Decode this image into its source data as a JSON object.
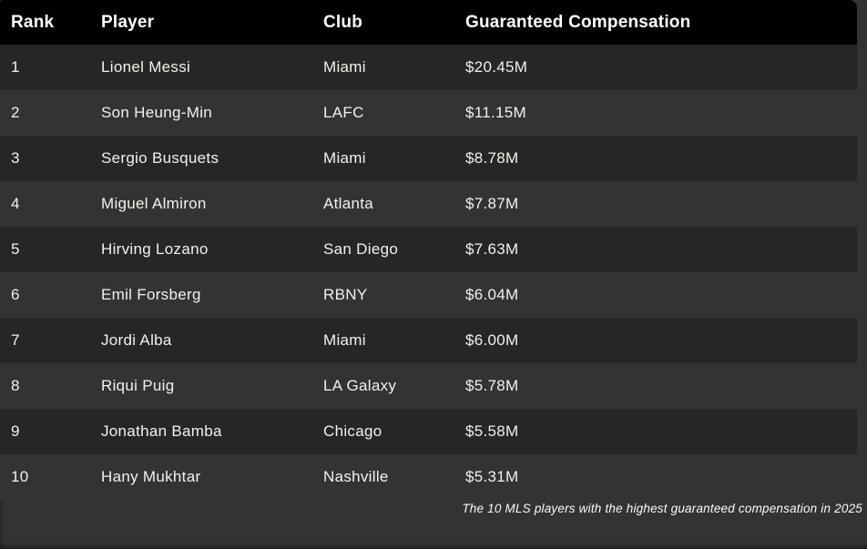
{
  "chart_data": {
    "type": "table",
    "title": "",
    "columns": [
      "Rank",
      "Player",
      "Club",
      "Guaranteed Compensation"
    ],
    "rows": [
      [
        "1",
        "Lionel Messi",
        "Miami",
        "$20.45M"
      ],
      [
        "2",
        "Son Heung-Min",
        "LAFC",
        "$11.15M"
      ],
      [
        "3",
        "Sergio Busquets",
        "Miami",
        "$8.78M"
      ],
      [
        "4",
        "Miguel Almiron",
        "Atlanta",
        "$7.87M"
      ],
      [
        "5",
        "Hirving Lozano",
        "San Diego",
        "$7.63M"
      ],
      [
        "6",
        "Emil Forsberg",
        "RBNY",
        "$6.04M"
      ],
      [
        "7",
        "Jordi Alba",
        "Miami",
        "$6.00M"
      ],
      [
        "8",
        "Riqui Puig",
        "LA Galaxy",
        "$5.78M"
      ],
      [
        "9",
        "Jonathan Bamba",
        "Chicago",
        "$5.58M"
      ],
      [
        "10",
        "Hany Mukhtar",
        "Nashville",
        "$5.31M"
      ]
    ],
    "caption": "The 10 MLS players with the highest guaranteed compensation in 2025"
  },
  "colors": {
    "page_bg": "#333333",
    "header_bg": "#000000",
    "header_text": "#ffffff",
    "row_odd_bg": "#262626",
    "row_even_bg": "#333333",
    "cell_text": "#f4f1ec",
    "caption_text": "#fafafa"
  }
}
